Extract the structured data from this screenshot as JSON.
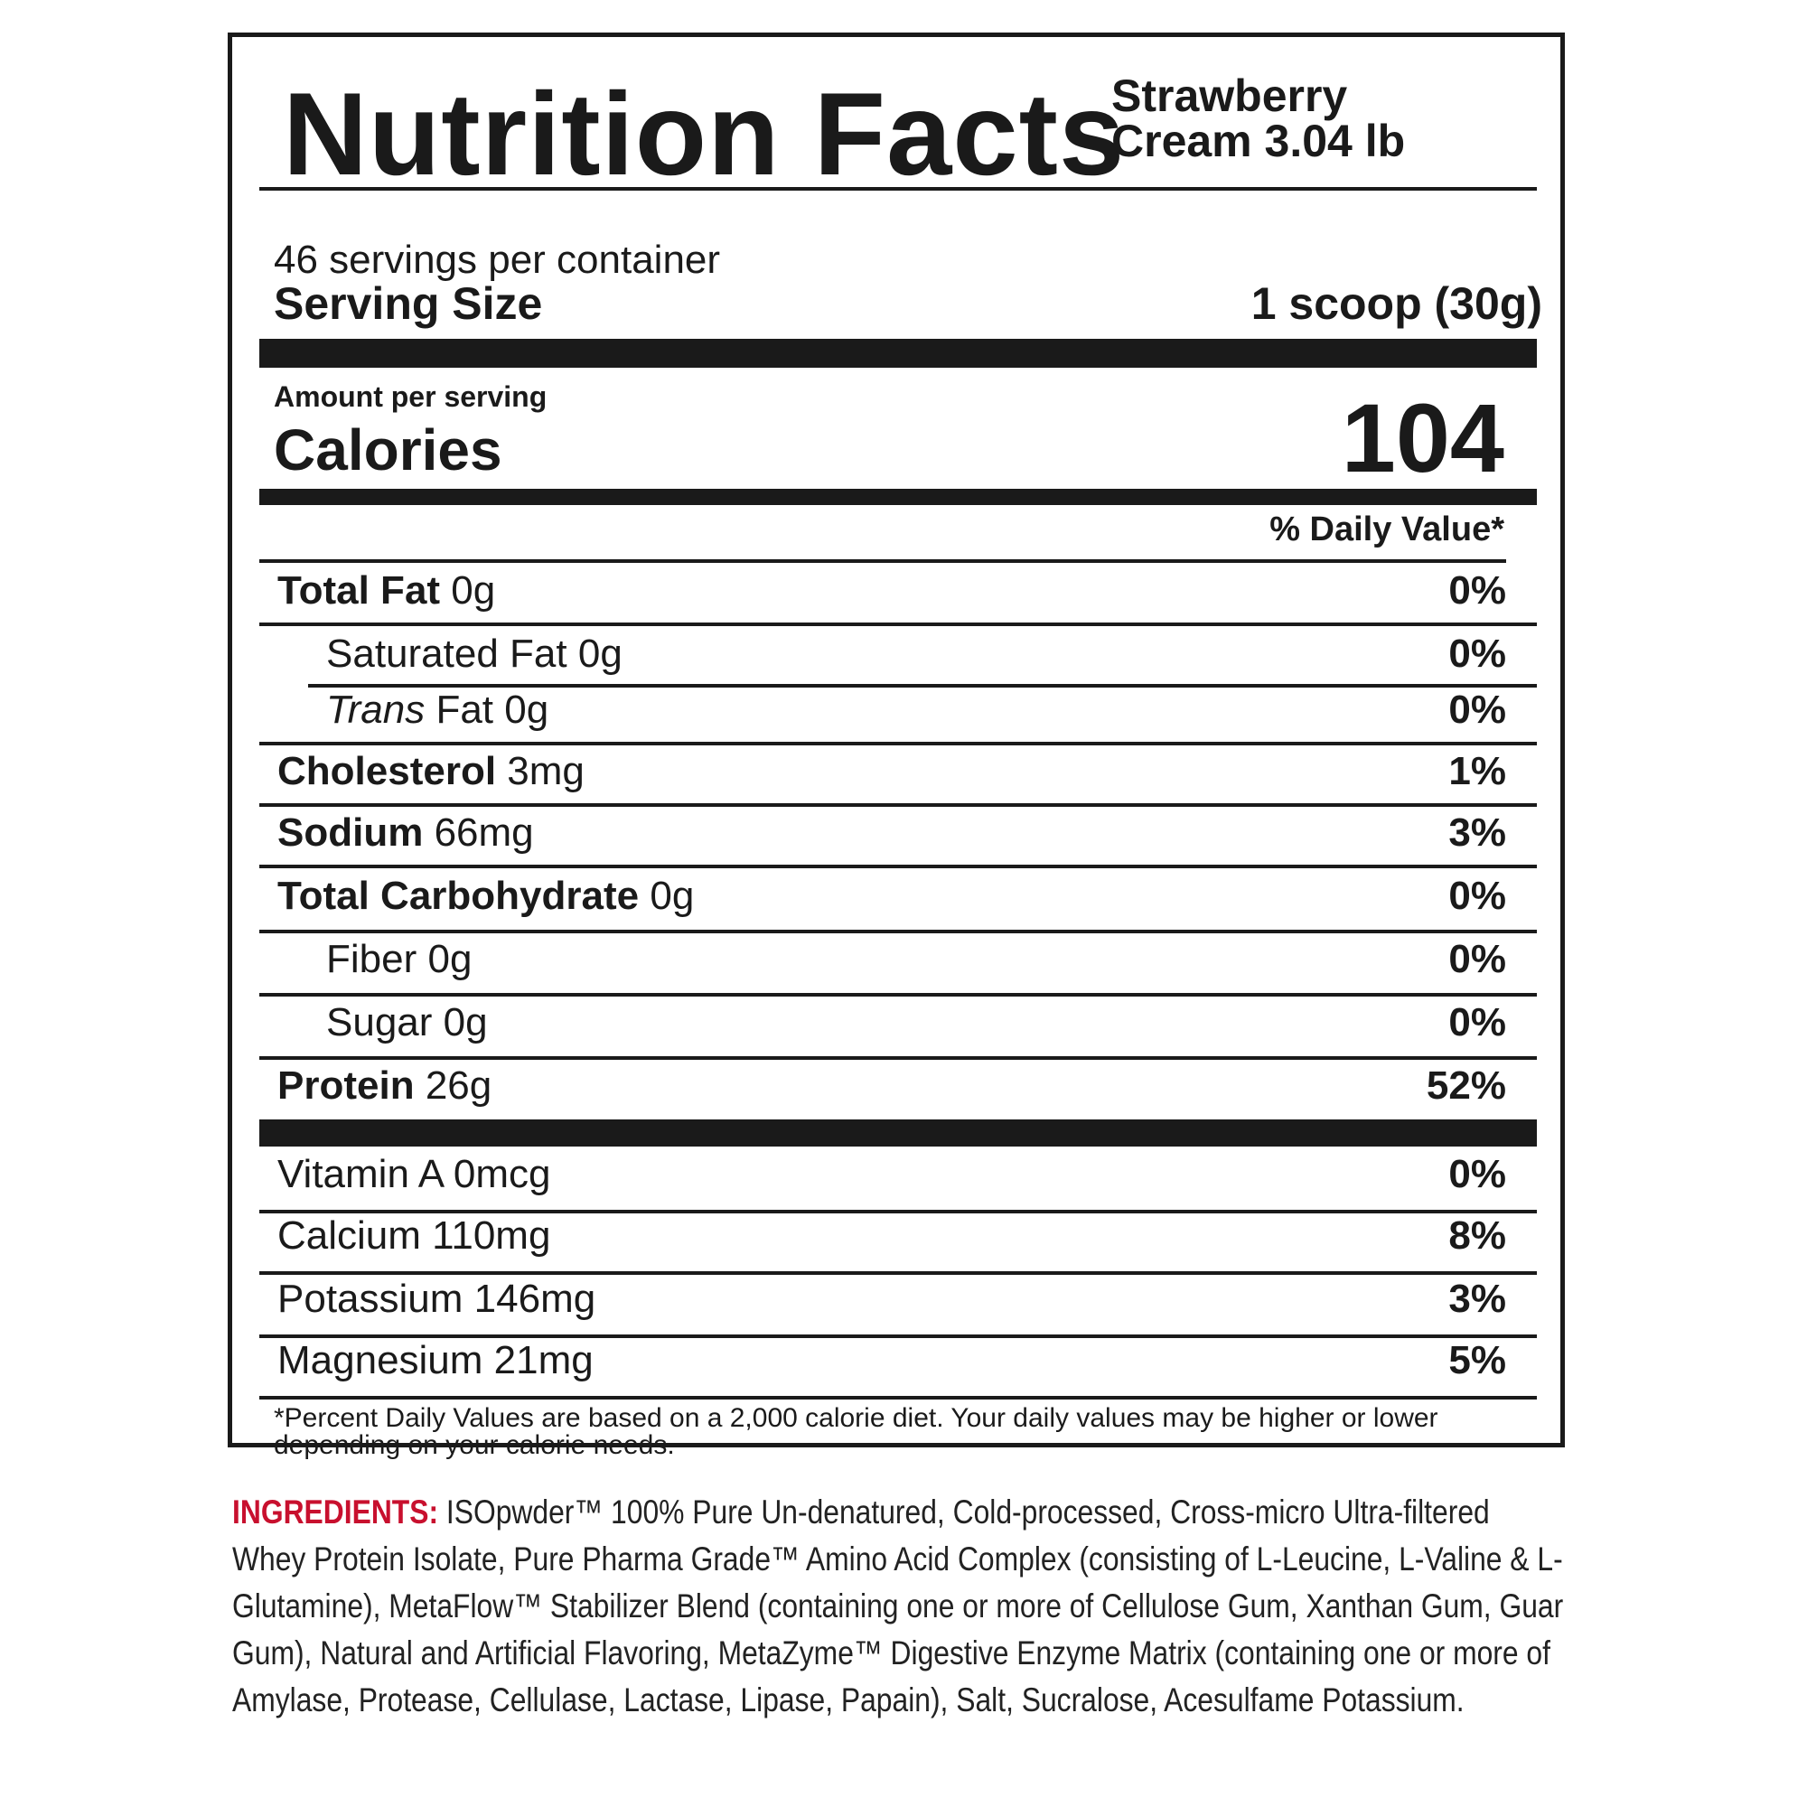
{
  "label": {
    "title": "Nutrition Facts",
    "product_line1": "Strawberry",
    "product_line2": "Cream 3.04 lb",
    "servings": "46 servings per container",
    "serving_size_label": "Serving Size",
    "serving_size_value": "1 scoop (30g)",
    "amount_per_serving": "Amount per serving",
    "calories_label": "Calories",
    "calories_value": "104",
    "daily_value_header": "% Daily Value*",
    "nutrients": [
      {
        "name": "Total Fat",
        "amount": "0g",
        "dv": "0%"
      },
      {
        "name": "Saturated Fat",
        "amount": "0g",
        "dv": "0%"
      },
      {
        "name": "Trans",
        "suffix": "Fat",
        "amount": "0g",
        "dv": "0%"
      },
      {
        "name": "Cholesterol",
        "amount": "3mg",
        "dv": "1%"
      },
      {
        "name": "Sodium",
        "amount": "66mg",
        "dv": "3%"
      },
      {
        "name": "Total Carbohydrate",
        "amount": "0g",
        "dv": "0%"
      },
      {
        "name": "Fiber",
        "amount": "0g",
        "dv": "0%"
      },
      {
        "name": "Sugar",
        "amount": "0g",
        "dv": "0%"
      },
      {
        "name": "Protein",
        "amount": "26g",
        "dv": "52%"
      }
    ],
    "vitamins": [
      {
        "name": "Vitamin A",
        "amount": "0mcg",
        "dv": "0%"
      },
      {
        "name": "Calcium",
        "amount": "110mg",
        "dv": "8%"
      },
      {
        "name": "Potassium",
        "amount": "146mg",
        "dv": "3%"
      },
      {
        "name": "Magnesium",
        "amount": "21mg",
        "dv": "5%"
      }
    ],
    "footnote": "*Percent Daily Values are based on a 2,000 calorie diet. Your daily values may be higher or lower depending on your calorie needs."
  },
  "ingredients": {
    "label": "INGREDIENTS:",
    "text": "ISOpwder™ 100% Pure Un-denatured, Cold-processed, Cross-micro Ultra-filtered Whey Protein Isolate, Pure Pharma Grade™ Amino Acid Complex (consisting of L-Leucine, L-Valine & L-Glutamine), MetaFlow™ Stabilizer Blend (containing one or more of Cellulose Gum, Xanthan Gum, Guar Gum), Natural and Artificial Flavoring, MetaZyme™ Digestive Enzyme Matrix (containing one or more of Amylase, Protease, Cellulase, Lactase, Lipase, Papain), Salt, Sucralose, Acesulfame Potassium."
  }
}
